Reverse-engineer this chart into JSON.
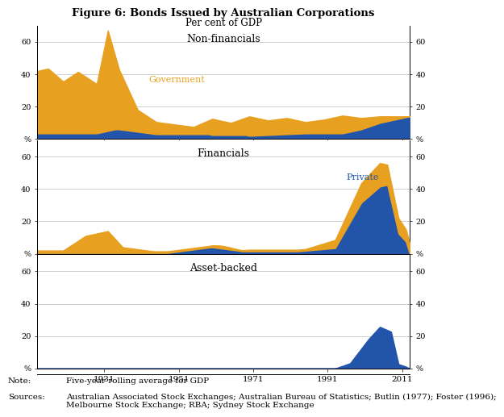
{
  "title": "Figure 6: Bonds Issued by Australian Corporations",
  "subtitle": "Per cent of GDP",
  "panel_labels": [
    "Non-financials",
    "Financials",
    "Asset-backed"
  ],
  "orange_color": "#E8A020",
  "blue_color": "#2255AA",
  "grid_color": "#BBBBBB",
  "xticks": [
    1931,
    1951,
    1971,
    1991,
    2011
  ],
  "yticks": [
    0,
    20,
    40,
    60
  ],
  "ylim": [
    0,
    70
  ],
  "xlim": [
    1913,
    2013
  ],
  "note_label": "Note:",
  "note_text": "Five-year rolling average for GDP",
  "sources_label": "Sources:",
  "sources_text": "Australian Associated Stock Exchanges; Australian Bureau of Statistics; Butlin (1977); Foster (1996);\nMelbourne Stock Exchange; RBA; Sydney Stock Exchange"
}
